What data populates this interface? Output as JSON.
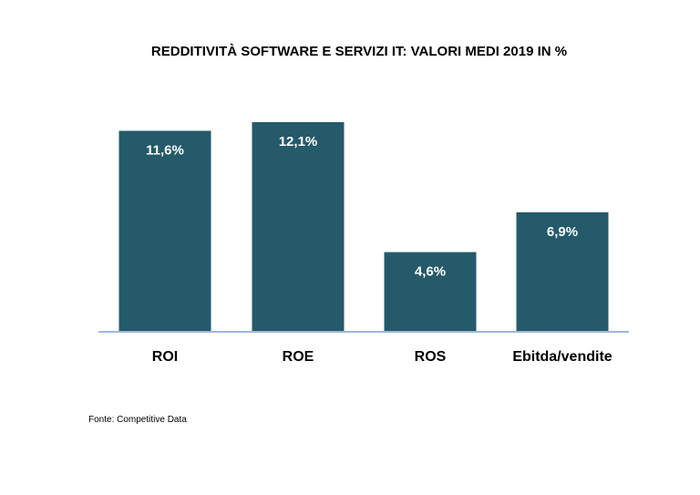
{
  "chart_data": {
    "type": "bar",
    "title": "REDDITIVITÀ SOFTWARE E SERVIZI IT: VALORI MEDI 2019 IN %",
    "categories": [
      "ROI",
      "ROE",
      "ROS",
      "Ebitda/vendite"
    ],
    "values": [
      11.6,
      12.1,
      4.6,
      6.9
    ],
    "data_labels": [
      "11,6%",
      "12,1%",
      "4,6%",
      "6,9%"
    ],
    "ylim": [
      0,
      12.1
    ],
    "grid": false,
    "legend": "none",
    "xlabel": "",
    "ylabel": "",
    "bar_color": "#245a69",
    "baseline_color": "#9db8dc",
    "label_color": "#ffffff"
  },
  "source": "Fonte: Competitive Data"
}
